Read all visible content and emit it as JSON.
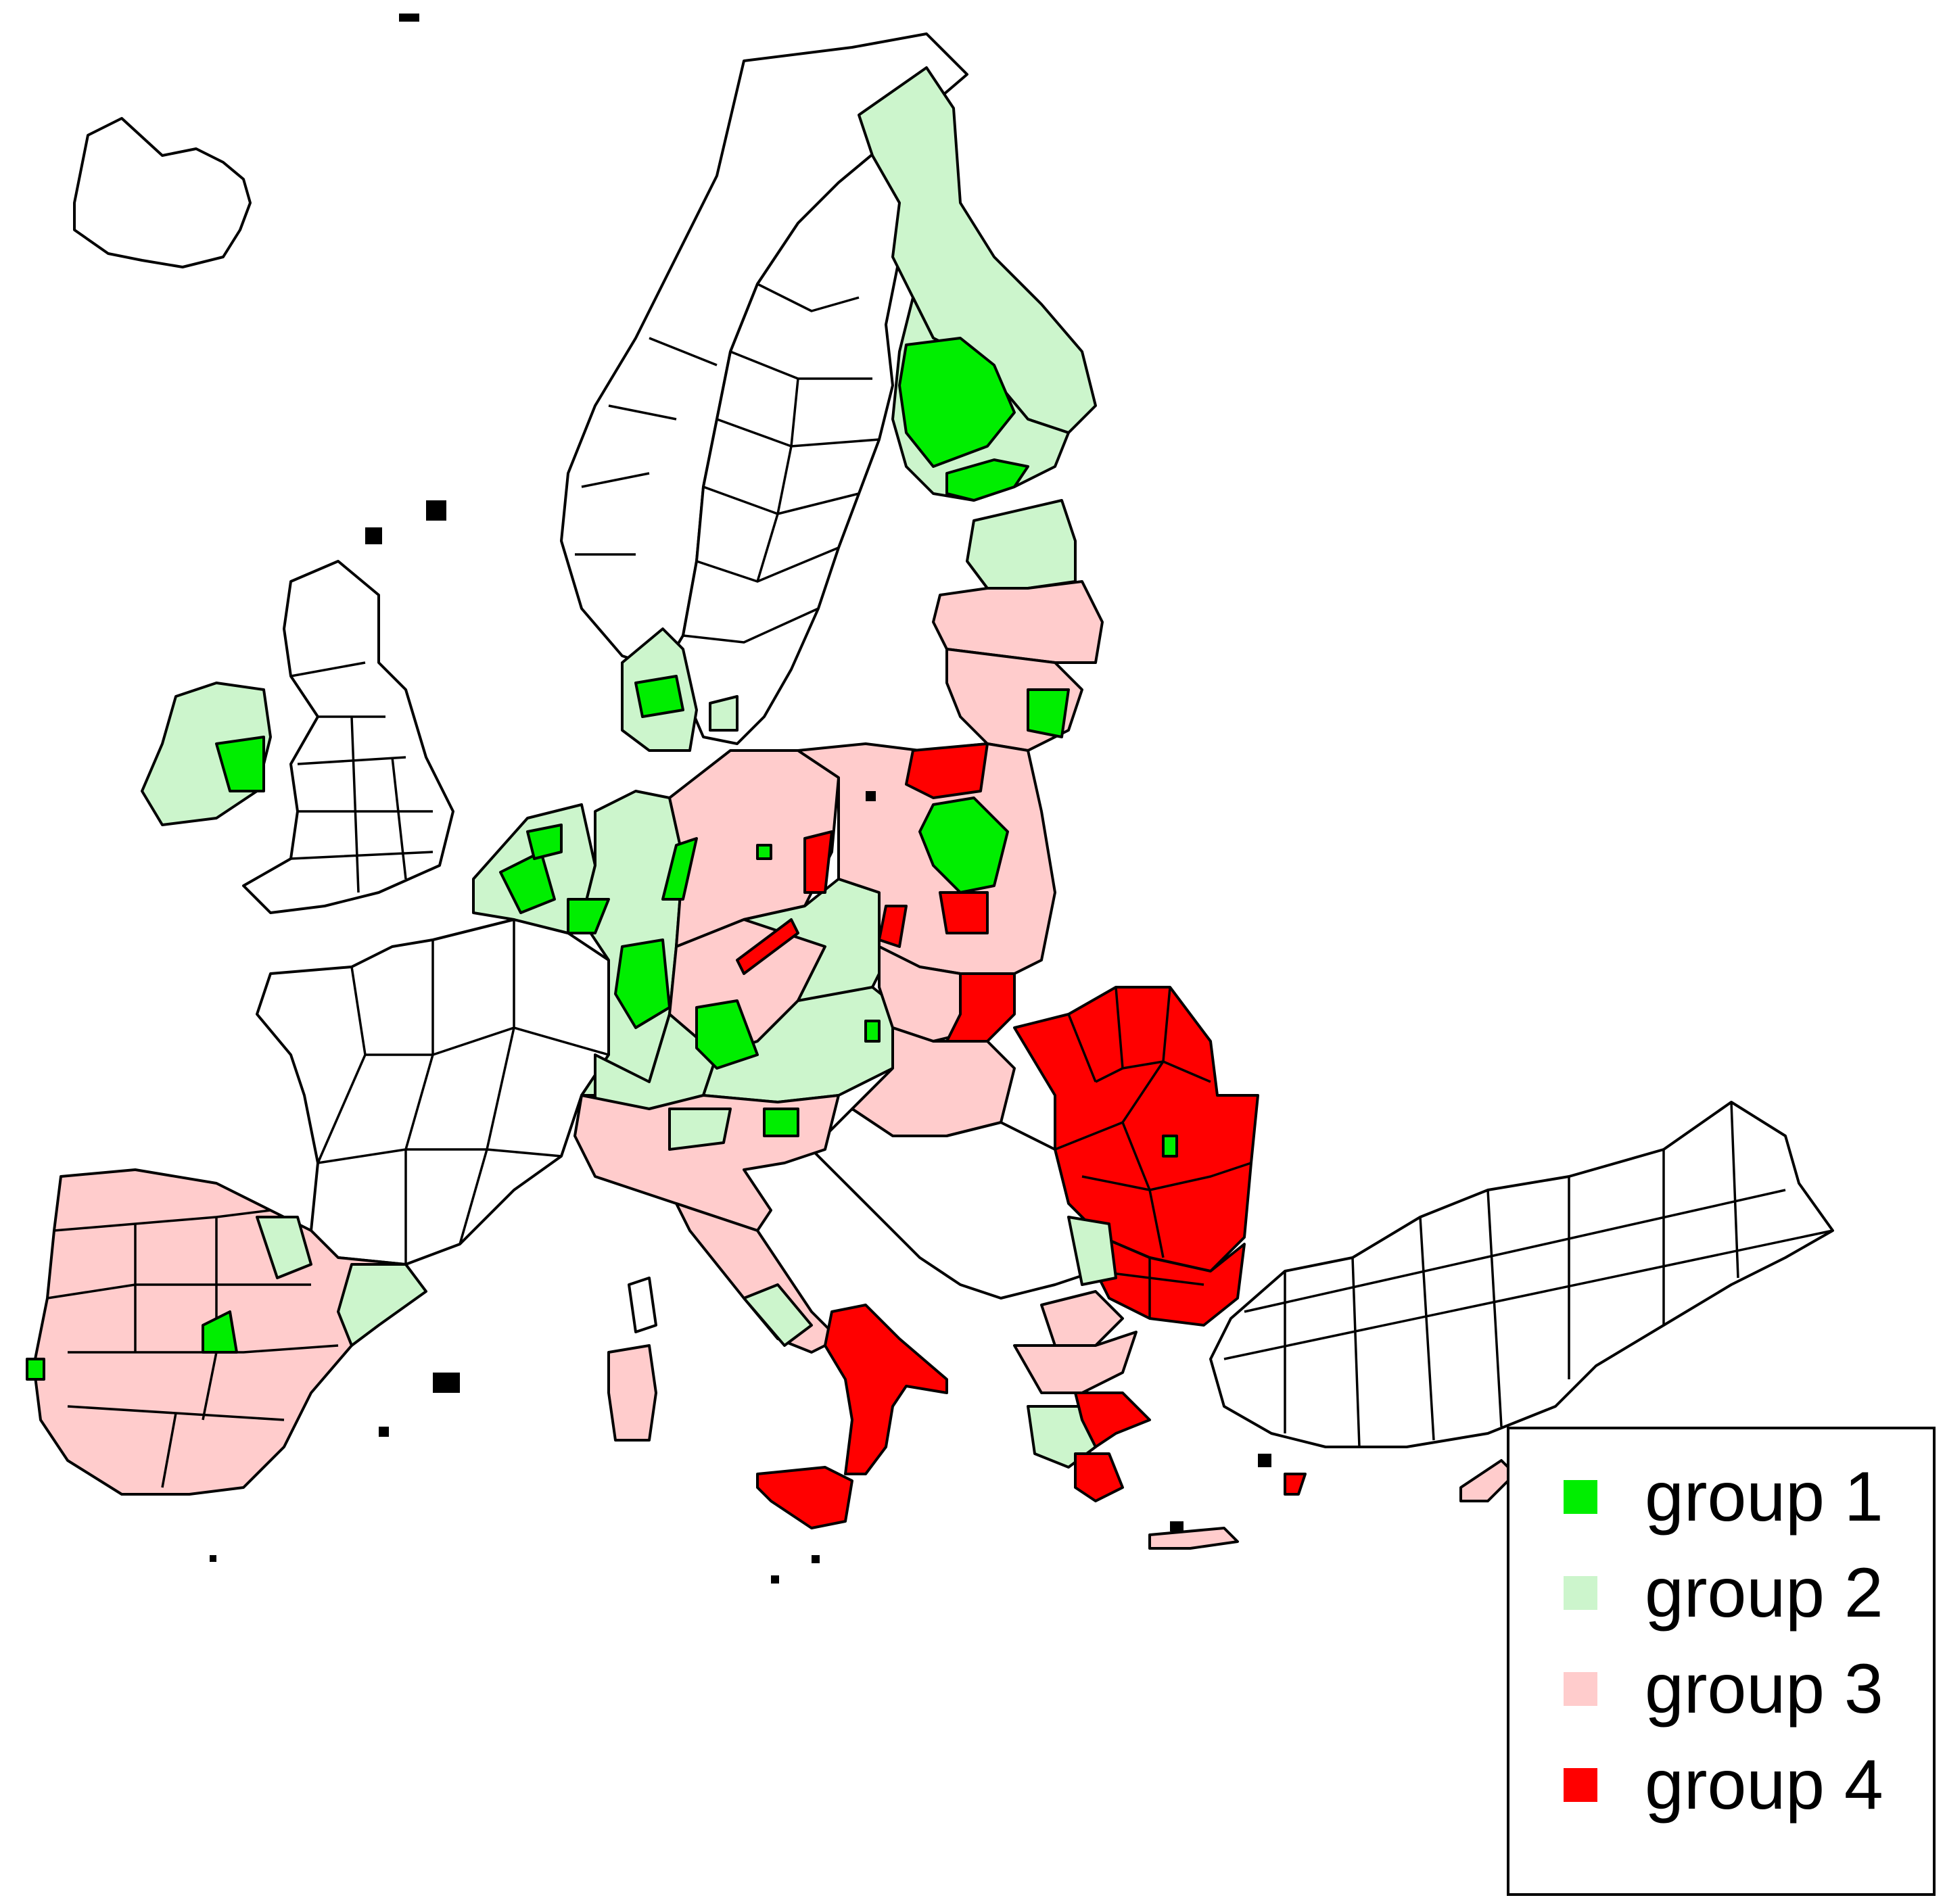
{
  "colors": {
    "group1": "#00ee00",
    "group2": "#ccf5cc",
    "group3": "#ffcccc",
    "group4": "#ff0000",
    "no_group": "#ffffff",
    "outline": "#000000"
  },
  "legend": {
    "items": [
      {
        "label": "group 1",
        "color_key": "group1"
      },
      {
        "label": "group 2",
        "color_key": "group2"
      },
      {
        "label": "group 3",
        "color_key": "group3"
      },
      {
        "label": "group 4",
        "color_key": "group4"
      }
    ]
  }
}
